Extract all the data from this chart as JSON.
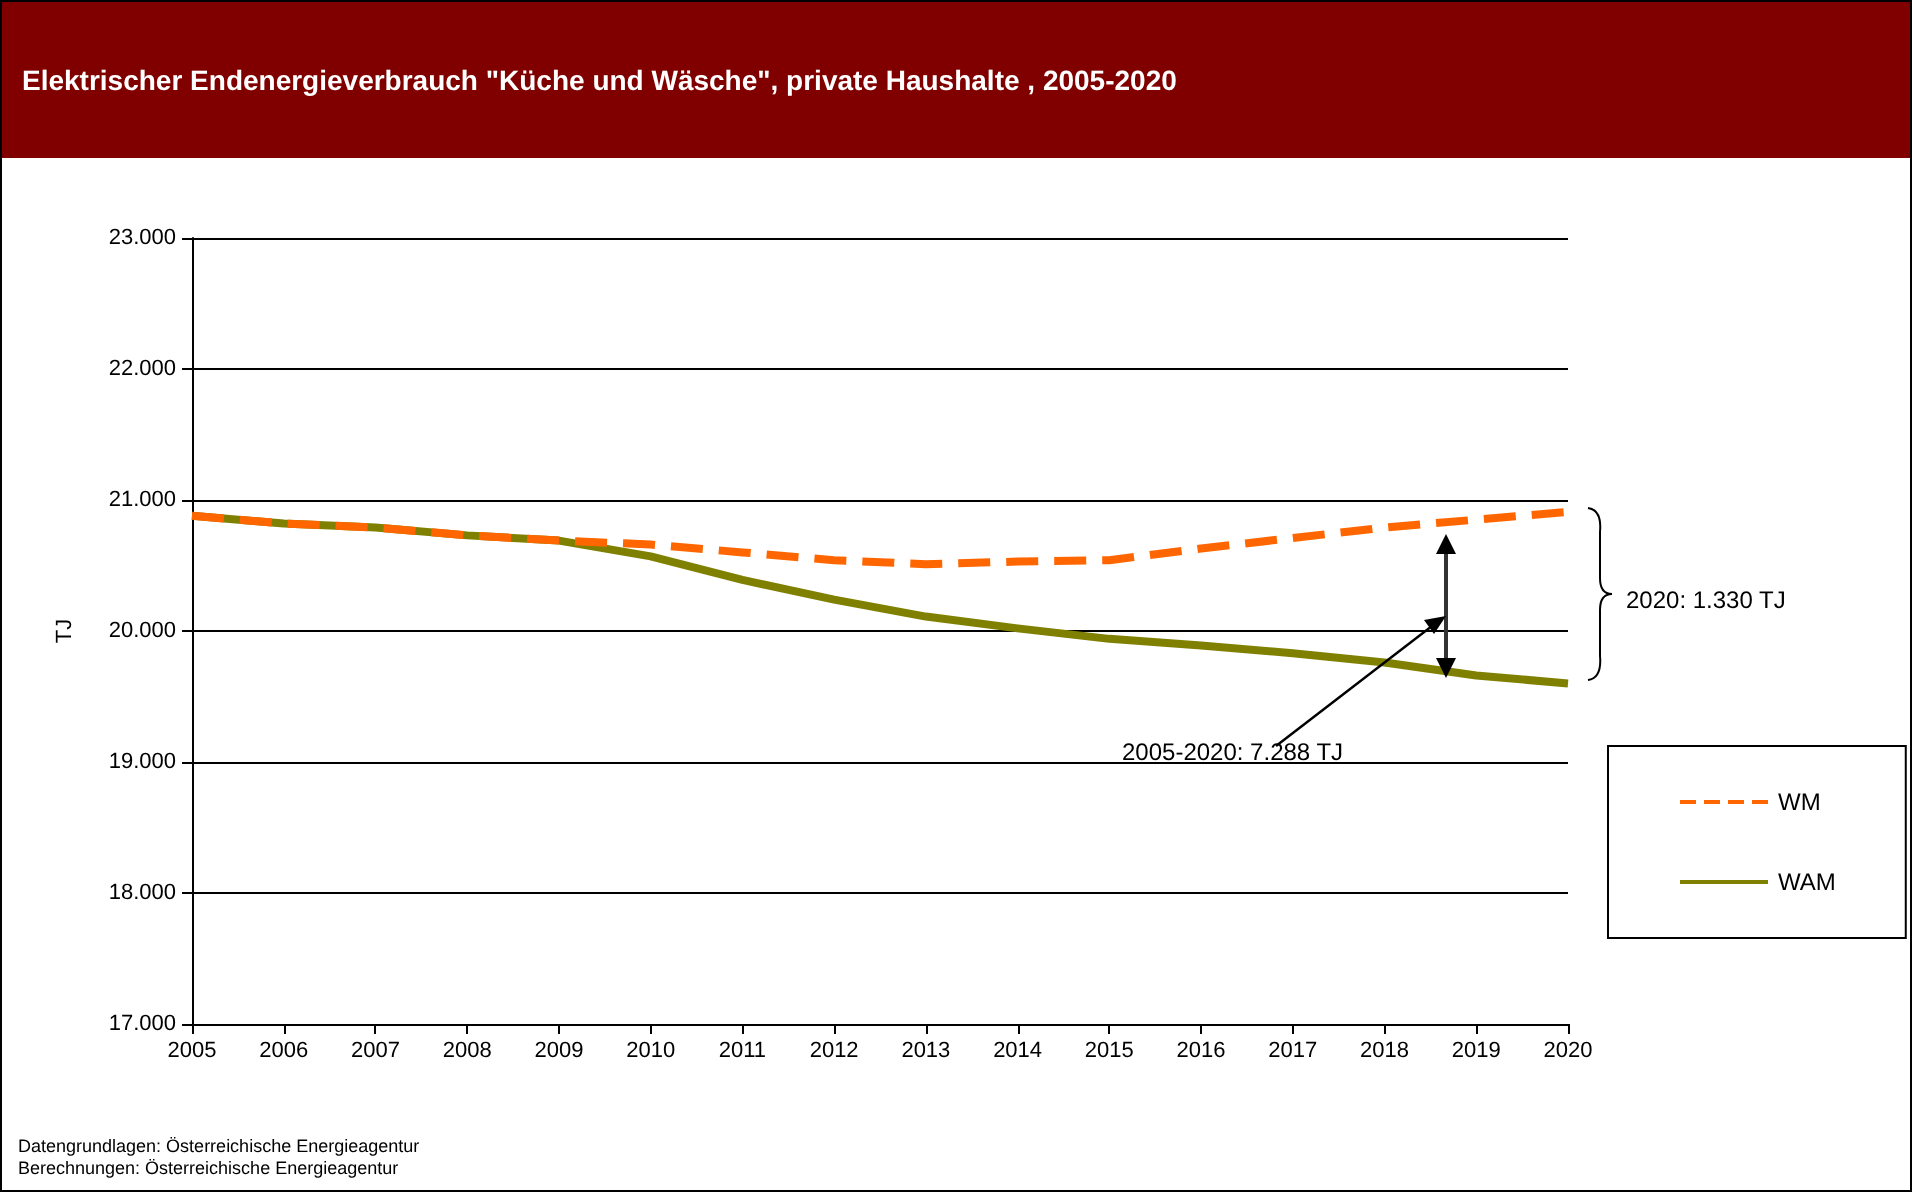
{
  "chart_data": {
    "type": "line",
    "title": "Elektrischer Endenergieverbrauch \"Küche und Wäsche\", private Haushalte , 2005-2020",
    "ylabel": "TJ",
    "x": [
      2005,
      2006,
      2007,
      2008,
      2009,
      2010,
      2011,
      2012,
      2013,
      2014,
      2015,
      2016,
      2017,
      2018,
      2019,
      2020
    ],
    "series": [
      {
        "name": "WM",
        "color": "#ff6600",
        "line_style": "dashed",
        "values": [
          20880,
          20820,
          20790,
          20730,
          20690,
          20660,
          20600,
          20540,
          20510,
          20530,
          20540,
          20630,
          20710,
          20790,
          20850,
          20910
        ]
      },
      {
        "name": "WAM",
        "color": "#808000",
        "line_style": "solid",
        "values": [
          20880,
          20820,
          20790,
          20730,
          20690,
          20570,
          20390,
          20240,
          20110,
          20020,
          19940,
          19890,
          19830,
          19760,
          19660,
          19600
        ]
      }
    ],
    "xlim": [
      2005,
      2020
    ],
    "xticks": [
      2005,
      2006,
      2007,
      2008,
      2009,
      2010,
      2011,
      2012,
      2013,
      2014,
      2015,
      2016,
      2017,
      2018,
      2019,
      2020
    ],
    "ylim": [
      17000,
      23000
    ],
    "yticks": [
      {
        "value": 17000,
        "label": "17.000"
      },
      {
        "value": 18000,
        "label": "18.000"
      },
      {
        "value": 19000,
        "label": "19.000"
      },
      {
        "value": 20000,
        "label": "20.000"
      },
      {
        "value": 21000,
        "label": "21.000"
      },
      {
        "value": 22000,
        "label": "22.000"
      },
      {
        "value": 23000,
        "label": "23.000"
      }
    ],
    "grid": "y",
    "legend": "right",
    "marker": "none",
    "annotations": [
      "2020: 1.330 TJ",
      "2005-2020: 7.288 TJ",
      "Datengrundlagen: Österreichische Energieagentur",
      "Berechnungen: Österreichische Energieagentur"
    ]
  }
}
